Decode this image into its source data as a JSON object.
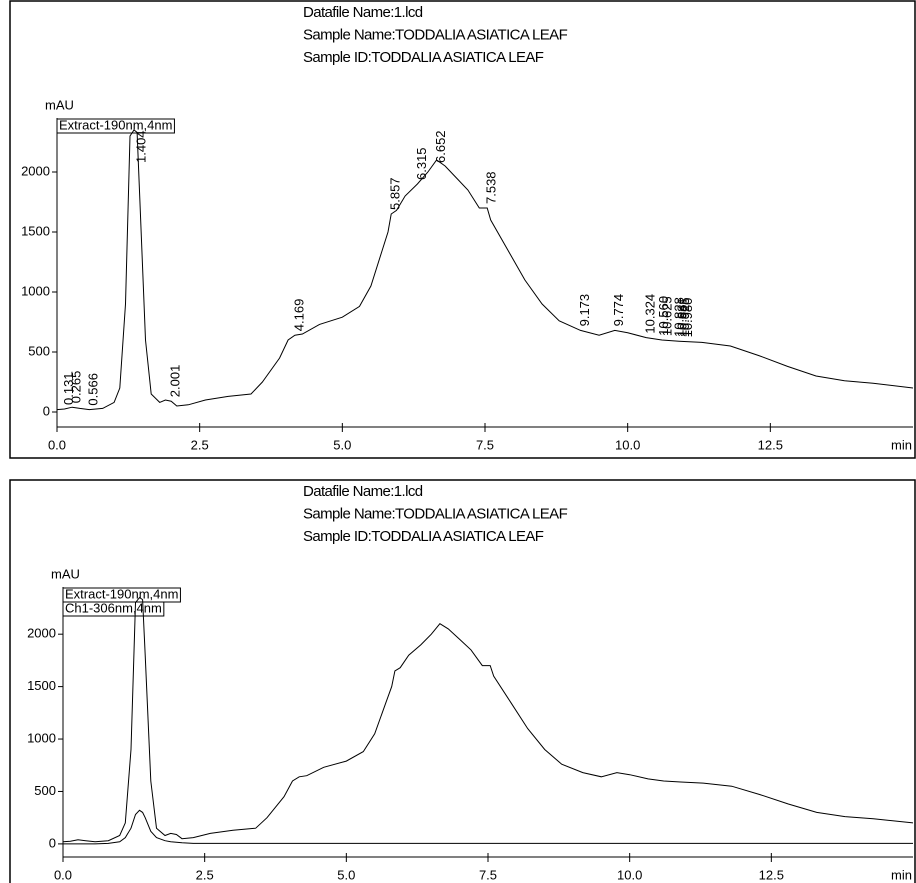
{
  "chart_data": [
    {
      "type": "line",
      "header": [
        "Datafile Name:1.lcd",
        "Sample Name:TODDALIA ASIATICA LEAF",
        "Sample ID:TODDALIA ASIATICA LEAF"
      ],
      "y_label": "mAU",
      "x_label": "min",
      "x": [
        0,
        0.131,
        0.265,
        0.4,
        0.566,
        0.8,
        1.0,
        1.1,
        1.2,
        1.28,
        1.35,
        1.404,
        1.45,
        1.55,
        1.65,
        1.8,
        1.9,
        2.001,
        2.1,
        2.3,
        2.6,
        3.0,
        3.4,
        3.6,
        3.9,
        4.05,
        4.169,
        4.3,
        4.6,
        5.0,
        5.3,
        5.5,
        5.7,
        5.8,
        5.857,
        5.95,
        6.1,
        6.315,
        6.5,
        6.652,
        6.8,
        7.0,
        7.2,
        7.4,
        7.538,
        7.6,
        7.9,
        8.2,
        8.5,
        8.8,
        9.173,
        9.5,
        9.774,
        10.0,
        10.324,
        10.6,
        10.9,
        11.3,
        11.8,
        12.3,
        12.8,
        13.3,
        13.8,
        14.3,
        15
      ],
      "series": [
        {
          "name": "Extract-190nm,4nm",
          "color": "#000000",
          "values": [
            20,
            25,
            40,
            30,
            20,
            30,
            80,
            200,
            900,
            2300,
            2350,
            2330,
            1800,
            600,
            150,
            80,
            100,
            90,
            50,
            60,
            100,
            130,
            150,
            250,
            450,
            600,
            640,
            650,
            730,
            790,
            880,
            1050,
            1350,
            1500,
            1650,
            1680,
            1800,
            1900,
            2000,
            2100,
            2050,
            1950,
            1850,
            1700,
            1700,
            1600,
            1350,
            1100,
            900,
            760,
            680,
            640,
            680,
            660,
            620,
            600,
            590,
            580,
            550,
            470,
            380,
            300,
            260,
            240,
            200
          ]
        }
      ],
      "peak_labels": [
        0.131,
        0.265,
        0.566,
        1.404,
        2.001,
        4.169,
        5.857,
        6.315,
        6.652,
        7.538,
        9.173,
        9.774,
        10.324,
        {
          "value": 10.56,
          "label": "10.560"
        },
        10.625,
        10.828,
        10.881,
        10.925,
        {
          "value": 10.98,
          "label": "10.980"
        }
      ],
      "xlim": [
        0,
        15
      ],
      "xticks": [
        {
          "value": 0,
          "label": "0.0"
        },
        2.5,
        {
          "value": 5,
          "label": "5.0"
        },
        7.5,
        {
          "value": 10,
          "label": "10.0"
        },
        12.5
      ],
      "ylim": [
        -125,
        2450
      ],
      "yticks": [
        0,
        500,
        1000,
        1500,
        2000
      ]
    },
    {
      "type": "line",
      "header": [
        "Datafile Name:1.lcd",
        "Sample Name:TODDALIA ASIATICA LEAF",
        "Sample ID:TODDALIA ASIATICA LEAF"
      ],
      "y_label": "mAU",
      "x_label": "min",
      "x": [
        0,
        0.131,
        0.265,
        0.4,
        0.566,
        0.8,
        1.0,
        1.1,
        1.2,
        1.28,
        1.35,
        1.404,
        1.45,
        1.55,
        1.65,
        1.8,
        1.9,
        2.001,
        2.1,
        2.3,
        2.6,
        3.0,
        3.4,
        3.6,
        3.9,
        4.05,
        4.169,
        4.3,
        4.6,
        5.0,
        5.3,
        5.5,
        5.7,
        5.8,
        5.857,
        5.95,
        6.1,
        6.315,
        6.5,
        6.652,
        6.8,
        7.0,
        7.2,
        7.4,
        7.538,
        7.6,
        7.9,
        8.2,
        8.5,
        8.8,
        9.173,
        9.5,
        9.774,
        10.0,
        10.324,
        10.6,
        10.9,
        11.3,
        11.8,
        12.3,
        12.8,
        13.3,
        13.8,
        14.3,
        15
      ],
      "series": [
        {
          "name": "Extract-190nm,4nm",
          "color": "#000000",
          "values": [
            20,
            25,
            40,
            30,
            20,
            30,
            80,
            200,
            900,
            2300,
            2350,
            2330,
            1800,
            600,
            150,
            80,
            100,
            90,
            50,
            60,
            100,
            130,
            150,
            250,
            450,
            600,
            640,
            650,
            730,
            790,
            880,
            1050,
            1350,
            1500,
            1650,
            1680,
            1800,
            1900,
            2000,
            2100,
            2050,
            1950,
            1850,
            1700,
            1700,
            1600,
            1350,
            1100,
            900,
            760,
            680,
            640,
            680,
            660,
            620,
            600,
            590,
            580,
            550,
            470,
            380,
            300,
            260,
            240,
            200
          ]
        },
        {
          "name": "Ch1-306nm,4nm",
          "color": "#000000",
          "values": [
            0,
            0,
            0,
            0,
            0,
            5,
            20,
            60,
            150,
            280,
            320,
            300,
            250,
            120,
            60,
            30,
            20,
            15,
            10,
            5,
            5,
            5,
            5,
            5,
            5,
            5,
            5,
            5,
            5,
            5,
            5,
            5,
            5,
            5,
            5,
            5,
            5,
            5,
            5,
            5,
            5,
            5,
            5,
            5,
            5,
            5,
            5,
            5,
            5,
            5,
            5,
            5,
            5,
            5,
            5,
            5,
            5,
            5,
            5,
            5,
            5,
            5,
            5,
            5,
            5
          ]
        }
      ],
      "xlim": [
        0,
        15
      ],
      "xticks": [
        {
          "value": 0,
          "label": "0.0"
        },
        2.5,
        {
          "value": 5,
          "label": "5.0"
        },
        7.5,
        {
          "value": 10,
          "label": "10.0"
        },
        12.5
      ],
      "ylim": [
        -125,
        2450
      ],
      "yticks": [
        0,
        500,
        1000,
        1500,
        2000
      ]
    }
  ]
}
